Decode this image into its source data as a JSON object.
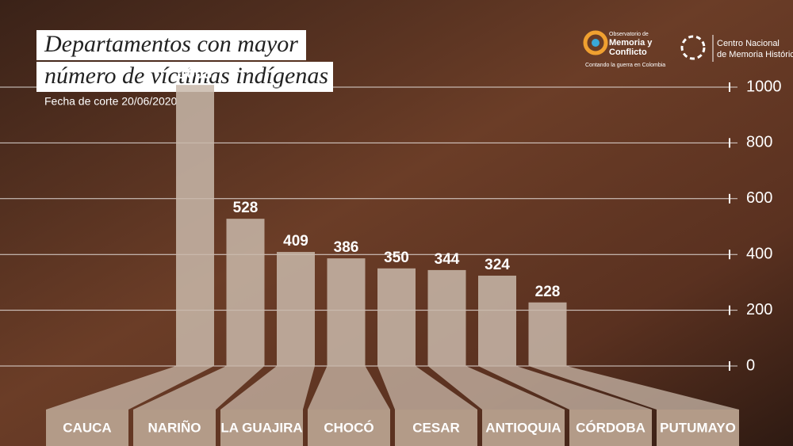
{
  "chart_data": {
    "type": "bar",
    "title": [
      "Departamentos con mayor",
      "número de víctimas indígenas"
    ],
    "subtitle": "Fecha de corte  20/06/2020",
    "categories": [
      "CAUCA",
      "NARIÑO",
      "LA GUAJIRA",
      "CHOCÓ",
      "CESAR",
      "ANTIOQUIA",
      "CÓRDOBA",
      "PUTUMAYO"
    ],
    "values": [
      1008,
      528,
      409,
      386,
      350,
      344,
      324,
      228
    ],
    "color": "#c9b8aa",
    "ylim": [
      0,
      1000
    ],
    "yticks": [
      0,
      200,
      400,
      600,
      800,
      1000
    ],
    "grid": true
  },
  "logos": {
    "observatorio": {
      "line1": "Observatorio de",
      "line2": "Memoria y",
      "line3": "Conflicto",
      "tagline": "Contando la guerra en Colombia"
    },
    "cnmh": {
      "line1": "Centro Nacional",
      "line2": "de Memoria Histórica"
    }
  }
}
